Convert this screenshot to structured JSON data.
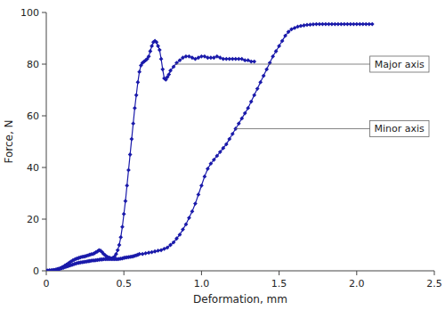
{
  "chart_data": {
    "type": "line",
    "x_label": "Deformation, mm",
    "y_label": "Force, N",
    "xlim": [
      0,
      2.5
    ],
    "ylim": [
      0,
      100
    ],
    "xticks": [
      0,
      0.5,
      {
        "value": 1.0,
        "label": "1.0"
      },
      1.5,
      {
        "value": 2.0,
        "label": "2.0"
      },
      2.5
    ],
    "yticks": [
      0,
      20,
      40,
      60,
      80,
      100
    ],
    "grid": false,
    "legend": "center right",
    "series": [
      {
        "name": "Major axis",
        "color": "#1a1aaa",
        "marker": "diamond",
        "line_style": "solid",
        "x": [
          0.0,
          0.01,
          0.02,
          0.03,
          0.04,
          0.05,
          0.06,
          0.07,
          0.08,
          0.09,
          0.1,
          0.11,
          0.12,
          0.13,
          0.14,
          0.15,
          0.16,
          0.17,
          0.18,
          0.19,
          0.2,
          0.21,
          0.22,
          0.23,
          0.24,
          0.25,
          0.26,
          0.27,
          0.28,
          0.29,
          0.3,
          0.31,
          0.32,
          0.33,
          0.34,
          0.35,
          0.36,
          0.37,
          0.38,
          0.39,
          0.4,
          0.41,
          0.42,
          0.43,
          0.44,
          0.45,
          0.46,
          0.47,
          0.48,
          0.49,
          0.5,
          0.51,
          0.52,
          0.53,
          0.54,
          0.55,
          0.56,
          0.57,
          0.58,
          0.59,
          0.6,
          0.61,
          0.62,
          0.63,
          0.64,
          0.65,
          0.66,
          0.67,
          0.68,
          0.69,
          0.7,
          0.71,
          0.72,
          0.73,
          0.74,
          0.75,
          0.76,
          0.77,
          0.78,
          0.79,
          0.8,
          0.82,
          0.84,
          0.86,
          0.88,
          0.9,
          0.92,
          0.94,
          0.96,
          0.98,
          1.0,
          1.02,
          1.04,
          1.06,
          1.08,
          1.1,
          1.12,
          1.14,
          1.16,
          1.18,
          1.2,
          1.22,
          1.24,
          1.26,
          1.28,
          1.3,
          1.32,
          1.34
        ],
        "values": [
          0.0,
          0.05,
          0.1,
          0.15,
          0.2,
          0.3,
          0.4,
          0.6,
          0.8,
          1.0,
          1.3,
          1.6,
          2.0,
          2.4,
          2.8,
          3.2,
          3.6,
          4.0,
          4.3,
          4.6,
          4.8,
          5.0,
          5.2,
          5.4,
          5.5,
          5.6,
          5.8,
          6.0,
          6.2,
          6.4,
          6.5,
          6.8,
          7.2,
          7.5,
          8.0,
          7.8,
          7.2,
          6.5,
          6.0,
          5.5,
          5.2,
          5.0,
          4.8,
          5.0,
          5.5,
          6.5,
          8.0,
          10.0,
          13.0,
          17.0,
          22.0,
          27.0,
          33.0,
          39.0,
          45.0,
          51.0,
          57.0,
          63.0,
          68.0,
          73.0,
          77.0,
          79.5,
          80.5,
          81.0,
          81.5,
          82.0,
          83.0,
          85.0,
          87.0,
          88.5,
          89.0,
          88.5,
          87.0,
          85.5,
          82.0,
          78.0,
          74.5,
          74.0,
          75.0,
          76.0,
          77.5,
          79.0,
          80.5,
          81.5,
          82.5,
          83.0,
          83.0,
          82.5,
          82.0,
          82.5,
          83.0,
          83.0,
          82.5,
          82.5,
          82.5,
          83.0,
          82.5,
          82.0,
          82.0,
          82.0,
          82.0,
          82.0,
          82.0,
          82.0,
          81.5,
          81.5,
          81.0,
          81.0
        ]
      },
      {
        "name": "Minor axis",
        "color": "#1a1aaa",
        "marker": "diamond",
        "line_style": "solid",
        "x": [
          0.0,
          0.01,
          0.02,
          0.03,
          0.04,
          0.05,
          0.06,
          0.07,
          0.08,
          0.09,
          0.1,
          0.11,
          0.12,
          0.13,
          0.14,
          0.15,
          0.16,
          0.17,
          0.18,
          0.19,
          0.2,
          0.21,
          0.22,
          0.23,
          0.24,
          0.25,
          0.26,
          0.27,
          0.28,
          0.29,
          0.3,
          0.31,
          0.32,
          0.33,
          0.34,
          0.35,
          0.36,
          0.37,
          0.38,
          0.39,
          0.4,
          0.41,
          0.42,
          0.43,
          0.44,
          0.45,
          0.46,
          0.47,
          0.48,
          0.49,
          0.5,
          0.51,
          0.52,
          0.53,
          0.54,
          0.55,
          0.56,
          0.57,
          0.58,
          0.59,
          0.6,
          0.62,
          0.64,
          0.66,
          0.68,
          0.7,
          0.72,
          0.74,
          0.76,
          0.78,
          0.8,
          0.82,
          0.84,
          0.86,
          0.88,
          0.9,
          0.92,
          0.94,
          0.96,
          0.98,
          1.0,
          1.02,
          1.04,
          1.06,
          1.08,
          1.1,
          1.12,
          1.14,
          1.16,
          1.18,
          1.2,
          1.22,
          1.24,
          1.26,
          1.28,
          1.3,
          1.32,
          1.34,
          1.36,
          1.38,
          1.4,
          1.42,
          1.44,
          1.46,
          1.48,
          1.5,
          1.52,
          1.54,
          1.56,
          1.58,
          1.6,
          1.62,
          1.64,
          1.66,
          1.68,
          1.7,
          1.72,
          1.74,
          1.76,
          1.78,
          1.8,
          1.82,
          1.84,
          1.86,
          1.88,
          1.9,
          1.92,
          1.94,
          1.96,
          1.98,
          2.0,
          2.02,
          2.04,
          2.06,
          2.08,
          2.1
        ],
        "values": [
          0.0,
          0.05,
          0.1,
          0.15,
          0.2,
          0.3,
          0.4,
          0.5,
          0.6,
          0.8,
          1.0,
          1.2,
          1.4,
          1.6,
          1.8,
          2.0,
          2.2,
          2.4,
          2.6,
          2.8,
          3.0,
          3.1,
          3.2,
          3.3,
          3.4,
          3.5,
          3.6,
          3.7,
          3.8,
          3.9,
          4.0,
          4.0,
          4.1,
          4.2,
          4.3,
          4.4,
          4.4,
          4.5,
          4.5,
          4.5,
          4.5,
          4.5,
          4.5,
          4.5,
          4.5,
          4.5,
          4.5,
          4.6,
          4.7,
          4.8,
          5.0,
          5.1,
          5.2,
          5.3,
          5.4,
          5.5,
          5.6,
          5.8,
          6.0,
          6.2,
          6.5,
          6.5,
          6.8,
          7.0,
          7.2,
          7.5,
          7.8,
          8.0,
          8.5,
          9.0,
          10.0,
          11.0,
          12.5,
          14.0,
          16.0,
          18.0,
          20.5,
          23.0,
          26.0,
          29.5,
          33.0,
          36.5,
          39.5,
          41.5,
          43.0,
          44.5,
          46.0,
          47.5,
          49.0,
          51.0,
          53.0,
          55.0,
          57.0,
          59.0,
          61.0,
          63.0,
          65.5,
          68.0,
          70.5,
          73.0,
          75.5,
          78.0,
          80.5,
          83.0,
          85.0,
          87.0,
          89.0,
          91.0,
          92.5,
          93.5,
          94.0,
          94.5,
          94.8,
          95.0,
          95.2,
          95.3,
          95.4,
          95.5,
          95.5,
          95.5,
          95.5,
          95.5,
          95.5,
          95.5,
          95.5,
          95.5,
          95.5,
          95.5,
          95.5,
          95.5,
          95.5,
          95.5,
          95.5,
          95.5,
          95.5,
          95.5
        ]
      }
    ]
  }
}
